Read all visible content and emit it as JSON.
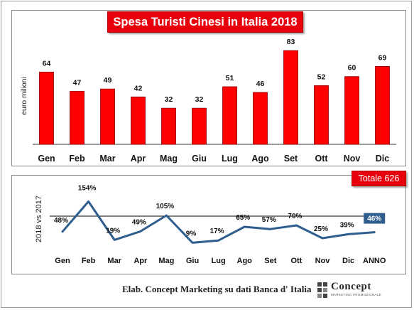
{
  "chart_data": [
    {
      "type": "bar",
      "title": "Spesa Turisti Cinesi in Italia 2018",
      "ylabel": "euro milioni",
      "categories": [
        "Gen",
        "Feb",
        "Mar",
        "Apr",
        "Mag",
        "Giu",
        "Lug",
        "Ago",
        "Set",
        "Ott",
        "Nov",
        "Dic"
      ],
      "values": [
        64,
        47,
        49,
        42,
        32,
        32,
        51,
        46,
        83,
        52,
        60,
        69
      ],
      "ylim": [
        0,
        90
      ],
      "bar_color": "#ff0000",
      "grid": false
    },
    {
      "type": "line",
      "ylabel": "2018  vs  2017",
      "categories": [
        "Gen",
        "Feb",
        "Mar",
        "Apr",
        "Mag",
        "Giu",
        "Lug",
        "Ago",
        "Set",
        "Ott",
        "Nov",
        "Dic",
        "ANNO"
      ],
      "labels": [
        "48%",
        "154%",
        "19%",
        "49%",
        "105%",
        "9%",
        "17%",
        "65%",
        "57%",
        "70%",
        "25%",
        "39%",
        "46%"
      ],
      "values": [
        48,
        154,
        19,
        49,
        105,
        9,
        17,
        65,
        57,
        70,
        25,
        39,
        46
      ],
      "ylim": [
        0,
        160
      ],
      "reference_line": 100,
      "line_color": "#2e5d8e",
      "highlight_label_color": "#2e5d8e",
      "grid": false
    }
  ],
  "totale_label": "Totale 626",
  "source": "Elab. Concept Marketing su dati Banca  d' Italia",
  "logo": {
    "name": "Concept",
    "tagline": "MARKETING PROMOZIONALE"
  }
}
